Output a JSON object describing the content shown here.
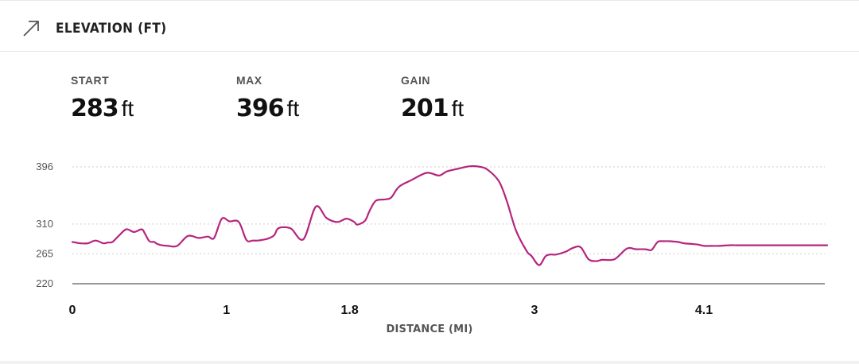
{
  "header": {
    "title": "ELEVATION (FT)",
    "icon": "arrow-up-right-icon"
  },
  "stats": [
    {
      "label": "START",
      "value": "283",
      "unit": "ft"
    },
    {
      "label": "MAX",
      "value": "396",
      "unit": "ft"
    },
    {
      "label": "GAIN",
      "value": "201",
      "unit": "ft"
    }
  ],
  "chart_data": {
    "type": "line",
    "xlabel": "DISTANCE (MI)",
    "ylabel": "",
    "x_ticks": [
      "0",
      "1",
      "1.8",
      "3",
      "4.1"
    ],
    "y_ticks": [
      220,
      265,
      310,
      396
    ],
    "xlim": [
      0,
      4.9
    ],
    "ylim": [
      220,
      396
    ],
    "grid": "horizontal-dotted",
    "line_color": "#b5247f",
    "series": [
      {
        "x": [
          0,
          0.05,
          0.1,
          0.15,
          0.2,
          0.23,
          0.26,
          0.3,
          0.35,
          0.4,
          0.45,
          0.47,
          0.5,
          0.53,
          0.55,
          0.58,
          0.62,
          0.68,
          0.75,
          0.82,
          0.88,
          0.92,
          0.97,
          1.02,
          1.08,
          1.13,
          1.17,
          1.2,
          1.23,
          1.27,
          1.31,
          1.33,
          1.36,
          1.42,
          1.5,
          1.58,
          1.65,
          1.72,
          1.78,
          1.83,
          1.85,
          1.9,
          1.93,
          1.97,
          2.03,
          2.07,
          2.12,
          2.2,
          2.3,
          2.38,
          2.43,
          2.5,
          2.58,
          2.65,
          2.7,
          2.77,
          2.82,
          2.88,
          2.95,
          2.98,
          3.03,
          3.07,
          3.1,
          3.14,
          3.2,
          3.25,
          3.3,
          3.35,
          3.4,
          3.44,
          3.52,
          3.6,
          3.66,
          3.72,
          3.76,
          3.8,
          3.84,
          3.88,
          3.93,
          3.97,
          4.02,
          4.06,
          4.1,
          4.15,
          4.2,
          4.26,
          4.32,
          4.4,
          4.5,
          4.6,
          4.7,
          4.8,
          4.9
        ],
        "values": [
          283,
          281,
          281,
          285,
          281,
          282,
          283,
          292,
          302,
          298,
          302,
          296,
          284,
          283,
          280,
          278,
          277,
          277,
          292,
          289,
          291,
          289,
          318,
          314,
          313,
          286,
          285,
          285,
          286,
          288,
          293,
          302,
          305,
          303,
          287,
          336,
          319,
          313,
          318,
          313,
          309,
          315,
          330,
          345,
          347,
          350,
          366,
          376,
          387,
          383,
          389,
          393,
          397,
          396,
          391,
          374,
          345,
          300,
          269,
          262,
          248,
          261,
          264,
          264,
          268,
          274,
          275,
          257,
          254,
          256,
          257,
          273,
          272,
          272,
          271,
          283,
          284,
          284,
          283,
          281,
          280,
          279,
          277,
          277,
          277,
          278,
          278,
          278,
          278,
          278,
          278,
          278,
          278
        ]
      }
    ]
  }
}
